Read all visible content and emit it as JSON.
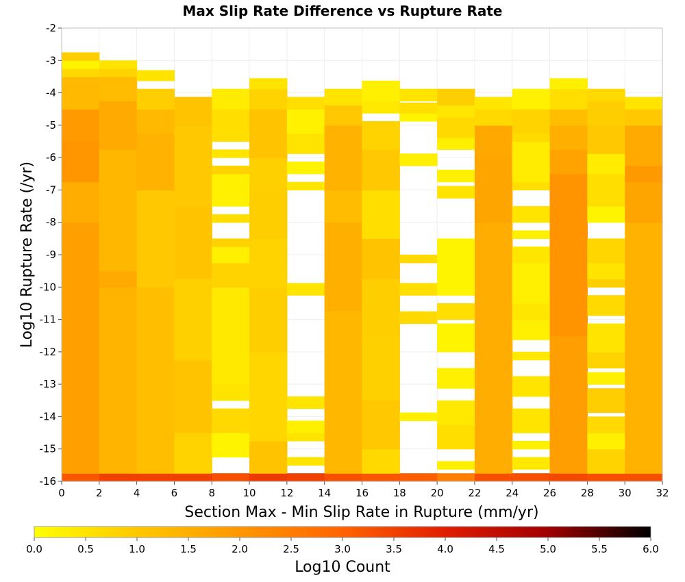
{
  "chart_data": {
    "type": "heatmap",
    "title": "Max Slip Rate Difference vs Rupture Rate",
    "xlabel": "Section Max - Min Slip Rate in Rupture (mm/yr)",
    "ylabel": "Log10 Rupture Rate (/yr)",
    "xlim": [
      0,
      32
    ],
    "ylim": [
      -16,
      -2
    ],
    "x_bin_width": 2,
    "y_bin_height": 0.25,
    "x_ticks": [
      "0",
      "2",
      "4",
      "6",
      "8",
      "10",
      "12",
      "14",
      "16",
      "18",
      "20",
      "22",
      "24",
      "26",
      "28",
      "30",
      "32"
    ],
    "y_ticks": [
      "-2",
      "-3",
      "-4",
      "-5",
      "-6",
      "-7",
      "-8",
      "-9",
      "-10",
      "-11",
      "-12",
      "-13",
      "-14",
      "-15",
      "-16"
    ],
    "colorbar": {
      "label": "Log10 Count",
      "range": [
        0,
        6
      ],
      "ticks": [
        "0.0",
        "0.5",
        "1.0",
        "1.5",
        "2.0",
        "2.5",
        "3.0",
        "3.5",
        "4.0",
        "4.5",
        "5.0",
        "5.5",
        "6.0"
      ],
      "colors": [
        "#ffff00",
        "#ffc800",
        "#ff9600",
        "#ff6400",
        "#e01e00",
        "#a00000",
        "#000000"
      ]
    },
    "columns": [
      {
        "x0": 0,
        "segments": [
          [
            -16,
            -15.75,
            3.2
          ],
          [
            -15.75,
            -8,
            1.8
          ],
          [
            -8,
            -6.75,
            1.55
          ],
          [
            -6.75,
            -5.5,
            2.0
          ],
          [
            -5.5,
            -4.5,
            1.9
          ],
          [
            -4.5,
            -3.5,
            1.3
          ],
          [
            -3.5,
            -3.25,
            0.7
          ],
          [
            -3.25,
            -3,
            0.2
          ],
          [
            -3,
            -2.75,
            0.9
          ]
        ]
      },
      {
        "x0": 2,
        "segments": [
          [
            -16,
            -15.75,
            3.5
          ],
          [
            -15.75,
            -10,
            1.4
          ],
          [
            -10,
            -9.5,
            1.6
          ],
          [
            -9.5,
            -5.75,
            1.35
          ],
          [
            -5.75,
            -4.25,
            1.6
          ],
          [
            -4.25,
            -3.5,
            1.25
          ],
          [
            -3.5,
            -3.25,
            0.8
          ],
          [
            -3.25,
            -3,
            0.5
          ]
        ]
      },
      {
        "x0": 4,
        "segments": [
          [
            -16,
            -15.75,
            3.5
          ],
          [
            -15.75,
            -10,
            1.2
          ],
          [
            -10,
            -7,
            1.0
          ],
          [
            -7,
            -5.25,
            1.45
          ],
          [
            -5.25,
            -4.5,
            1.3
          ],
          [
            -4.5,
            -3.875,
            0.9
          ],
          [
            -3.625,
            -3.3,
            0.5
          ]
        ]
      },
      {
        "x0": 6,
        "segments": [
          [
            -16,
            -15.75,
            3.5
          ],
          [
            -15.75,
            -14.5,
            0.8
          ],
          [
            -14.5,
            -12.25,
            1.1
          ],
          [
            -12.25,
            -9.75,
            0.85
          ],
          [
            -9.75,
            -7.5,
            1.1
          ],
          [
            -7.5,
            -5,
            1.0
          ],
          [
            -5,
            -4.125,
            1.1
          ]
        ]
      },
      {
        "x0": 8,
        "segments": [
          [
            -16,
            -15.75,
            3.3
          ],
          [
            -15.25,
            -14.5,
            0.2
          ],
          [
            -14.5,
            -13.75,
            0.7
          ],
          [
            -13.5,
            -13,
            0.5
          ],
          [
            -13,
            -10,
            0.4
          ],
          [
            -10,
            -9.25,
            0.8
          ],
          [
            -9.25,
            -8.75,
            0.3
          ],
          [
            -8.75,
            -8.5,
            0.8
          ],
          [
            -8,
            -7.75,
            0.6
          ],
          [
            -7.5,
            -6.5,
            0.25
          ],
          [
            -6.5,
            -6.25,
            0.8
          ],
          [
            -6,
            -5.75,
            0.5
          ],
          [
            -5.5,
            -4.5,
            0.6
          ],
          [
            -4.5,
            -3.875,
            0.35
          ]
        ]
      },
      {
        "x0": 10,
        "segments": [
          [
            -16,
            -15.75,
            3.6
          ],
          [
            -15.75,
            -14.75,
            1.1
          ],
          [
            -14.75,
            -12,
            0.75
          ],
          [
            -12,
            -10,
            0.9
          ],
          [
            -10,
            -8.5,
            0.8
          ],
          [
            -8.5,
            -7,
            0.9
          ],
          [
            -7,
            -6,
            0.85
          ],
          [
            -6,
            -4.5,
            1.1
          ],
          [
            -4.5,
            -3.875,
            0.8
          ],
          [
            -3.875,
            -3.55,
            0.5
          ]
        ]
      },
      {
        "x0": 12,
        "segments": [
          [
            -16,
            -15.75,
            3.5
          ],
          [
            -15.5,
            -15.25,
            0.5
          ],
          [
            -14.75,
            -14.5,
            0.5
          ],
          [
            -14.5,
            -14.125,
            0.3
          ],
          [
            -13.75,
            -13.375,
            0.5
          ],
          [
            -10.25,
            -9.875,
            0.5
          ],
          [
            -7,
            -6.75,
            0.45
          ],
          [
            -6.5,
            -6.125,
            0.2
          ],
          [
            -5.875,
            -5.25,
            0.5
          ],
          [
            -5.25,
            -4.5,
            0.25
          ],
          [
            -4.5,
            -4.125,
            0.6
          ]
        ]
      },
      {
        "x0": 14,
        "segments": [
          [
            -16,
            -15.75,
            3.3
          ],
          [
            -15.75,
            -10.75,
            1.35
          ],
          [
            -10.75,
            -8,
            1.5
          ],
          [
            -8,
            -7,
            1.25
          ],
          [
            -7,
            -5,
            1.45
          ],
          [
            -5,
            -4.375,
            1.0
          ],
          [
            -4.375,
            -3.875,
            0.5
          ]
        ]
      },
      {
        "x0": 16,
        "segments": [
          [
            -16,
            -15.75,
            3.2
          ],
          [
            -15.75,
            -15,
            0.7
          ],
          [
            -15,
            -13.5,
            1.0
          ],
          [
            -13.5,
            -11.5,
            0.85
          ],
          [
            -11.5,
            -9.75,
            0.9
          ],
          [
            -9.75,
            -8.5,
            1.1
          ],
          [
            -8.5,
            -7,
            0.6
          ],
          [
            -7,
            -5.75,
            1.0
          ],
          [
            -5.75,
            -4.875,
            0.8
          ],
          [
            -4.625,
            -4.25,
            0.4
          ],
          [
            -4.25,
            -3.625,
            0.3
          ]
        ]
      },
      {
        "x0": 18,
        "segments": [
          [
            -16,
            -15.75,
            3.1
          ],
          [
            -14.125,
            -13.875,
            0.3
          ],
          [
            -11.125,
            -10.75,
            0.7
          ],
          [
            -10.25,
            -9.875,
            0.6
          ],
          [
            -9.25,
            -9,
            0.7
          ],
          [
            -6.25,
            -5.875,
            0.3
          ],
          [
            -4.875,
            -4.625,
            0.2
          ],
          [
            -4.625,
            -4.3,
            0.6
          ],
          [
            -4.25,
            -3.875,
            0.5
          ]
        ]
      },
      {
        "x0": 20,
        "segments": [
          [
            -16,
            -15.75,
            2.5
          ],
          [
            -15.625,
            -15.375,
            0.3
          ],
          [
            -15,
            -14.25,
            0.6
          ],
          [
            -14.25,
            -13.5,
            0.4
          ],
          [
            -13.125,
            -12.5,
            0.3
          ],
          [
            -12,
            -11.125,
            0.2
          ],
          [
            -11,
            -10.5,
            0.6
          ],
          [
            -10.25,
            -8.5,
            0.2
          ],
          [
            -7.25,
            -6.875,
            0.5
          ],
          [
            -6.75,
            -6.375,
            0.25
          ],
          [
            -5.75,
            -5.375,
            0.3
          ],
          [
            -5.375,
            -4.75,
            0.7
          ],
          [
            -4.75,
            -4.375,
            0.45
          ],
          [
            -4.375,
            -3.875,
            0.9
          ]
        ]
      },
      {
        "x0": 22,
        "segments": [
          [
            -16,
            -15.75,
            3.3
          ],
          [
            -15.75,
            -8,
            1.55
          ],
          [
            -8,
            -6,
            1.7
          ],
          [
            -6,
            -5,
            1.65
          ],
          [
            -5,
            -4.5,
            0.7
          ],
          [
            -4.5,
            -4.125,
            0.45
          ]
        ]
      },
      {
        "x0": 24,
        "segments": [
          [
            -16,
            -15.75,
            3.3
          ],
          [
            -15.625,
            -15.25,
            0.4
          ],
          [
            -15,
            -14.75,
            0.3
          ],
          [
            -14.5,
            -13.75,
            0.5
          ],
          [
            -13.375,
            -12.75,
            0.5
          ],
          [
            -12.25,
            -12,
            0.4
          ],
          [
            -11.625,
            -11,
            0.3
          ],
          [
            -11,
            -10.5,
            0.45
          ],
          [
            -10.5,
            -9.25,
            0.3
          ],
          [
            -9.25,
            -8.75,
            0.45
          ],
          [
            -8.5,
            -8.25,
            0.3
          ],
          [
            -8,
            -7.5,
            0.5
          ],
          [
            -7,
            -6.75,
            0.6
          ],
          [
            -6.75,
            -5.5,
            0.35
          ],
          [
            -5.5,
            -5.25,
            0.65
          ],
          [
            -5.25,
            -4.5,
            0.8
          ],
          [
            -4.5,
            -3.875,
            0.25
          ]
        ]
      },
      {
        "x0": 26,
        "segments": [
          [
            -16,
            -15.75,
            3.4
          ],
          [
            -15.75,
            -11.5,
            1.85
          ],
          [
            -11.5,
            -6.5,
            2.05
          ],
          [
            -6.5,
            -5.75,
            1.75
          ],
          [
            -5.75,
            -5,
            1.5
          ],
          [
            -5,
            -4.5,
            1.2
          ],
          [
            -4.5,
            -3.875,
            0.6
          ],
          [
            -3.875,
            -3.55,
            0.3
          ]
        ]
      },
      {
        "x0": 28,
        "segments": [
          [
            -16,
            -15.75,
            3.3
          ],
          [
            -15.75,
            -15,
            0.8
          ],
          [
            -15,
            -14.5,
            0.3
          ],
          [
            -14.5,
            -14,
            0.7
          ],
          [
            -13.875,
            -13.125,
            0.9
          ],
          [
            -13,
            -12.625,
            0.3
          ],
          [
            -12.5,
            -12,
            0.8
          ],
          [
            -12,
            -11.125,
            0.5
          ],
          [
            -10.875,
            -10.25,
            0.7
          ],
          [
            -10,
            -9.75,
            0.9
          ],
          [
            -9.75,
            -9.25,
            0.5
          ],
          [
            -9.25,
            -8.5,
            0.75
          ],
          [
            -8,
            -7.5,
            0.2
          ],
          [
            -7.5,
            -6.5,
            0.6
          ],
          [
            -6.5,
            -5.875,
            0.35
          ],
          [
            -5.875,
            -5,
            1.0
          ],
          [
            -5,
            -4.25,
            0.9
          ],
          [
            -4.25,
            -3.875,
            0.7
          ]
        ]
      },
      {
        "x0": 30,
        "segments": [
          [
            -16,
            -15.75,
            3.3
          ],
          [
            -15.75,
            -8,
            1.45
          ],
          [
            -8,
            -6.75,
            1.7
          ],
          [
            -6.75,
            -6.25,
            1.95
          ],
          [
            -6.25,
            -5,
            1.6
          ],
          [
            -5,
            -4.5,
            1.0
          ],
          [
            -4.5,
            -4.125,
            0.5
          ]
        ]
      }
    ]
  }
}
